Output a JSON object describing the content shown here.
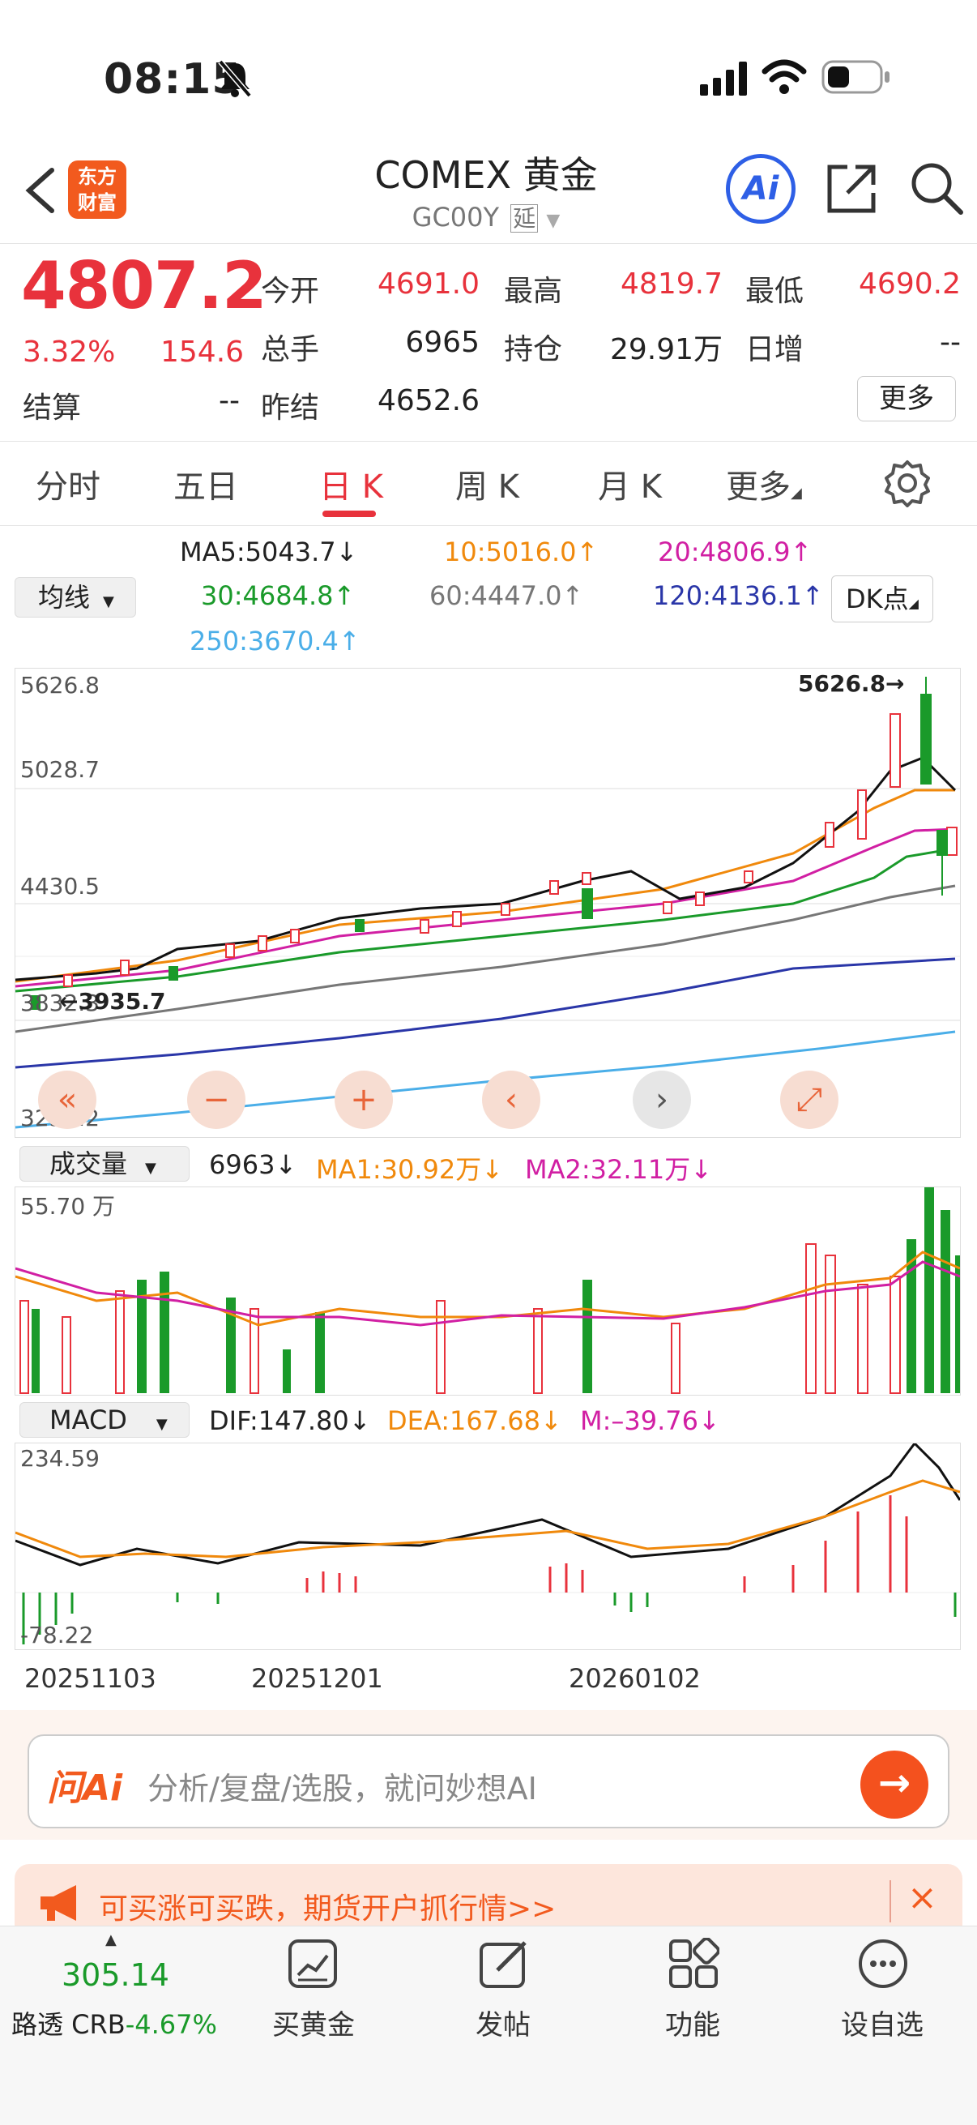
{
  "status_bar": {
    "time": "08:15"
  },
  "header": {
    "logo_line1": "东方",
    "logo_line2": "财富",
    "title": "COMEX 黄金",
    "code": "GC00Y",
    "delay_tag": "延",
    "ai_label": "Ai"
  },
  "quote": {
    "price": "4807.2",
    "change_pct": "3.32%",
    "change": "154.6",
    "open_label": "今开",
    "open": "4691.0",
    "high_label": "最高",
    "high": "4819.7",
    "low_label": "最低",
    "low": "4690.2",
    "volume_label": "总手",
    "volume": "6965",
    "position_label": "持仓",
    "position": "29.91万",
    "daily_inc_label": "日增",
    "daily_inc": "--",
    "settle_label": "结算",
    "settle": "--",
    "prev_settle_label": "昨结",
    "prev_settle": "4652.6",
    "more_button": "更多"
  },
  "tabs": [
    "分时",
    "五日",
    "日 K",
    "周 K",
    "月 K",
    "更多"
  ],
  "active_tab": "日 K",
  "ma_legend": {
    "selector": "均线",
    "ma5": "MA5:5043.7",
    "ma10": "10:5016.0",
    "ma20": "20:4806.9",
    "ma30": "30:4684.8",
    "ma60": "60:4447.0",
    "ma120": "120:4136.1",
    "ma250": "250:3670.4",
    "dk_button": "DK点"
  },
  "colors": {
    "up": "#e8323c",
    "down": "#1a9a2a",
    "ma5": "#111111",
    "ma10": "#f0890c",
    "ma20": "#d11fa3",
    "ma30": "#1a9a2a",
    "ma60": "#777777",
    "ma120": "#2a36a8",
    "ma250": "#4aaee8",
    "brand": "#f25a1e"
  },
  "kline": {
    "y_labels": [
      "5626.8",
      "5028.7",
      "4430.5",
      "3832.3",
      "3234.2"
    ],
    "high_marker": "5626.8→",
    "low_marker": "←3935.7"
  },
  "volume": {
    "selector": "成交量",
    "current": "6963",
    "ma1": "MA1:30.92万",
    "ma2": "MA2:32.11万",
    "y_max": "55.70 万"
  },
  "macd": {
    "selector": "MACD",
    "dif": "DIF:147.80",
    "dea": "DEA:167.68",
    "m": "M:–39.76",
    "y_max": "234.59",
    "y_min": "-78.22"
  },
  "dates": [
    "20251103",
    "20251201",
    "20260102"
  ],
  "ai_bar": {
    "brand": "问Ai",
    "placeholder": "分析/复盘/选股，就问妙想AI"
  },
  "promo": {
    "text": "可买涨可买跌，期货开户抓行情>>"
  },
  "bottom_nav": {
    "index_value": "305.14",
    "index_name": "路透 CRB",
    "index_change": "-4.67%",
    "items": [
      "买黄金",
      "发帖",
      "功能",
      "设自选"
    ]
  }
}
